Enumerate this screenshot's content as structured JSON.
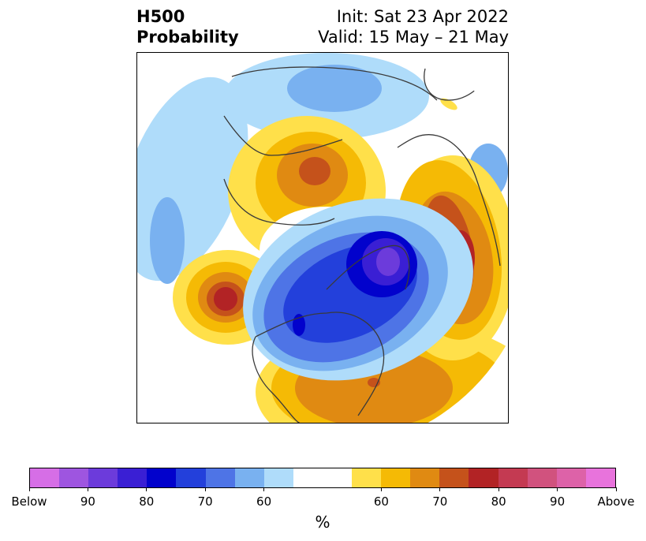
{
  "title": {
    "left_line1": "H500",
    "left_line2": "Probability",
    "right_line1": "Init: Sat 23 Apr 2022",
    "right_line2": "Valid: 15 May – 21 May"
  },
  "colorbar": {
    "unit": "%",
    "colors": [
      "#d66ee6",
      "#9e55e0",
      "#6c3bdb",
      "#3a1fd4",
      "#0202cc",
      "#2340db",
      "#4e74e6",
      "#79b1f0",
      "#afdcfa",
      "#ffffff",
      "#ffffff",
      "#ffe04a",
      "#f5ba05",
      "#e08a12",
      "#c5521b",
      "#b22325",
      "#c43a52",
      "#d1527e",
      "#dd62a8",
      "#e873dc"
    ],
    "tick_labels": [
      "Below",
      "90",
      "80",
      "70",
      "60",
      "60",
      "70",
      "80",
      "90",
      "Above"
    ]
  }
}
